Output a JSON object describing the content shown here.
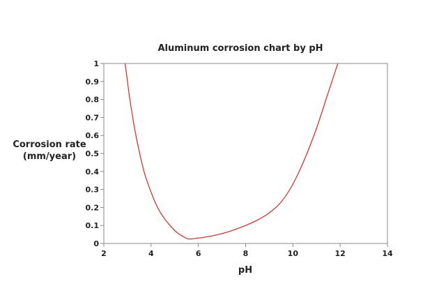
{
  "chart_data": {
    "type": "line",
    "title": "Aluminum corrosion chart by pH",
    "xlabel": "pH",
    "ylabel": [
      "Corrosion rate",
      "(mm/year)"
    ],
    "xlim": [
      2,
      14
    ],
    "ylim": [
      0,
      1
    ],
    "xticks": [
      "2",
      "4",
      "6",
      "8",
      "10",
      "12",
      "14"
    ],
    "yticks": [
      "0",
      "0.1",
      "0.2",
      "0.3",
      "0.4",
      "0.5",
      "0.6",
      "0.7",
      "0.8",
      "0.9",
      "1"
    ],
    "grid": false,
    "legend": "none",
    "series": [
      {
        "color": "#e8221b",
        "x": [
          2.9,
          3.0,
          3.1,
          3.2,
          3.3,
          3.5,
          3.7,
          3.9,
          4.2,
          4.5,
          4.8,
          5.1,
          5.4,
          5.6,
          6.0,
          6.5,
          7.0,
          7.5,
          8.0,
          8.5,
          9.0,
          9.5,
          10.0,
          10.5,
          11.0,
          11.4,
          11.7,
          11.9
        ],
        "y": [
          1.0,
          0.9,
          0.8,
          0.72,
          0.64,
          0.51,
          0.4,
          0.32,
          0.22,
          0.15,
          0.1,
          0.06,
          0.035,
          0.025,
          0.03,
          0.04,
          0.055,
          0.075,
          0.1,
          0.13,
          0.17,
          0.23,
          0.33,
          0.47,
          0.64,
          0.8,
          0.92,
          1.0
        ]
      }
    ]
  }
}
